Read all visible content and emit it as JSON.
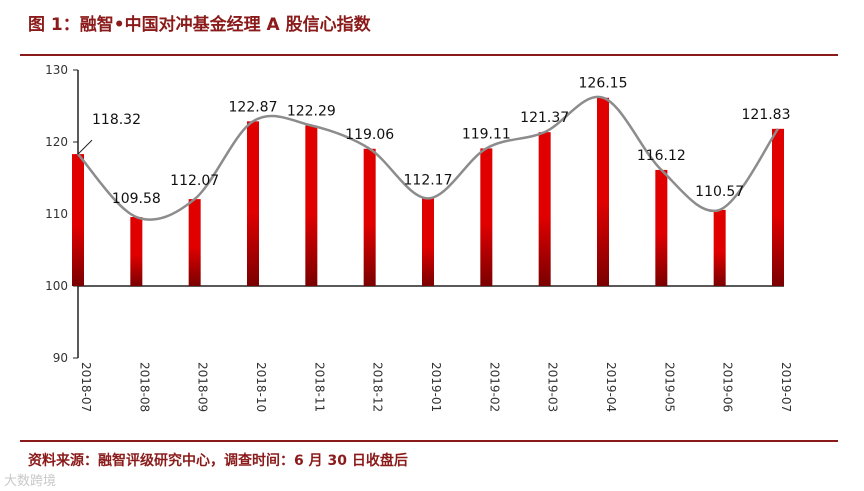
{
  "header": {
    "title": "图 1：融智•中国对冲基金经理 A 股信心指数"
  },
  "footer": {
    "source": "资料来源：融智评级研究中心，调查时间：6 月 30 日收盘后",
    "watermark": "大数跨境"
  },
  "colors": {
    "bar": "#e00000",
    "bar_dark": "#7a0000",
    "line": "#8c8c8c",
    "rule": "#8b1a1a",
    "text_accent": "#8b1a1a"
  },
  "chart_data": {
    "type": "bar",
    "title": "",
    "xlabel": "",
    "ylabel": "",
    "categories": [
      "2018-07",
      "2018-08",
      "2018-09",
      "2018-10",
      "2018-11",
      "2018-12",
      "2019-01",
      "2019-02",
      "2019-03",
      "2019-04",
      "2019-05",
      "2019-06",
      "2019-07"
    ],
    "values": [
      118.32,
      109.58,
      112.07,
      122.87,
      122.29,
      119.06,
      112.17,
      119.11,
      121.37,
      126.15,
      116.12,
      110.57,
      121.83
    ],
    "data_labels": [
      "118.32",
      "109.58",
      "112.07",
      "122.87",
      "122.29",
      "119.06",
      "112.17",
      "119.11",
      "121.37",
      "126.15",
      "116.12",
      "110.57",
      "121.83"
    ],
    "baseline": 100,
    "ylim": [
      90,
      130
    ],
    "yticks": [
      "90",
      "100",
      "110",
      "120",
      "130"
    ],
    "overlay": "smoothed line through bar tops",
    "grid": false
  }
}
